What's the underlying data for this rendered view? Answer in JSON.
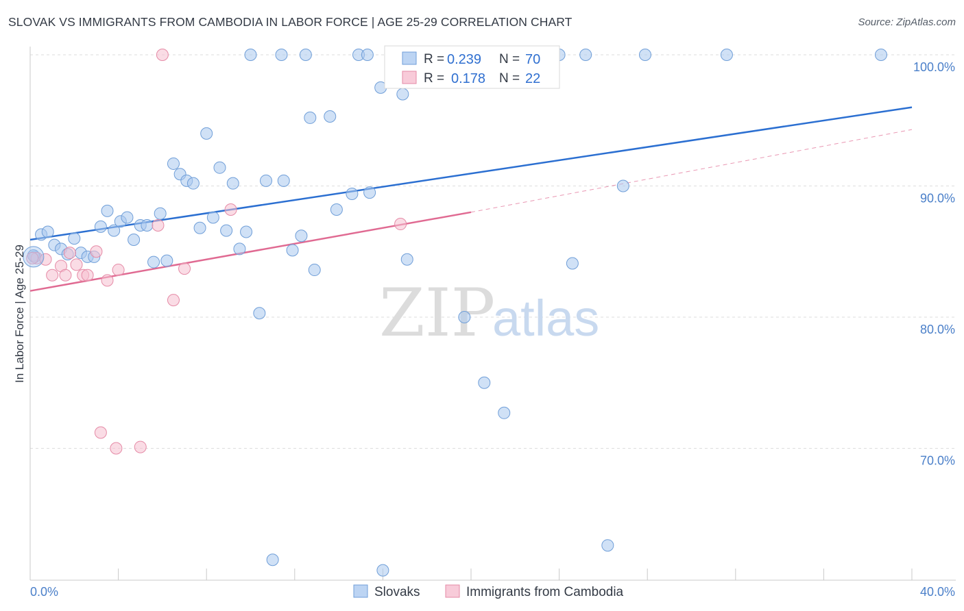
{
  "title": "SLOVAK VS IMMIGRANTS FROM CAMBODIA IN LABOR FORCE | AGE 25-29 CORRELATION CHART",
  "source": "Source: ZipAtlas.com",
  "watermark": {
    "part1": "ZIP",
    "part2": "atlas"
  },
  "colors": {
    "blue_fill": "#a9c8ef",
    "blue_stroke": "#6f9ed8",
    "blue_line": "#2b6fd1",
    "pink_fill": "#f6bfd0",
    "pink_stroke": "#e58aa6",
    "pink_line": "#e06a92",
    "grid": "#dddddd",
    "tick_text": "#4a7fc9"
  },
  "legend": {
    "r_label": "R =",
    "n_label": "N =",
    "rows": [
      {
        "r": "0.239",
        "n": "70"
      },
      {
        "r": "0.178",
        "n": "22"
      }
    ]
  },
  "chart_data": {
    "type": "scatter",
    "title": "SLOVAK VS IMMIGRANTS FROM CAMBODIA IN LABOR FORCE | AGE 25-29 CORRELATION CHART",
    "xlabel": "",
    "ylabel": "In Labor Force | Age 25-29",
    "xlim": [
      0,
      40
    ],
    "ylim": [
      61.5,
      101.5
    ],
    "x_tick_labels": [
      "0.0%",
      "40.0%"
    ],
    "y_ticks": [
      70,
      80,
      90,
      100
    ],
    "y_tick_labels": [
      "70.0%",
      "80.0%",
      "90.0%",
      "100.0%"
    ],
    "grid": true,
    "legend_position": "top-center",
    "series": [
      {
        "name": "Slovaks",
        "color": "#a9c8ef",
        "trend": {
          "x": [
            0,
            40
          ],
          "y": [
            85.9,
            96.0
          ]
        },
        "points": [
          [
            0.2,
            84.6
          ],
          [
            0.5,
            86.3
          ],
          [
            0.8,
            86.5
          ],
          [
            1.1,
            85.5
          ],
          [
            1.4,
            85.2
          ],
          [
            1.7,
            84.8
          ],
          [
            2.0,
            86.0
          ],
          [
            2.3,
            84.9
          ],
          [
            2.6,
            84.6
          ],
          [
            2.9,
            84.6
          ],
          [
            3.2,
            86.9
          ],
          [
            3.5,
            88.1
          ],
          [
            3.8,
            86.6
          ],
          [
            4.1,
            87.3
          ],
          [
            4.4,
            87.6
          ],
          [
            4.7,
            85.9
          ],
          [
            5.0,
            87.0
          ],
          [
            5.3,
            87.0
          ],
          [
            5.6,
            84.2
          ],
          [
            5.9,
            87.9
          ],
          [
            6.2,
            84.3
          ],
          [
            6.5,
            91.7
          ],
          [
            6.8,
            90.9
          ],
          [
            7.1,
            90.4
          ],
          [
            7.4,
            90.2
          ],
          [
            7.7,
            86.8
          ],
          [
            8.0,
            94.0
          ],
          [
            8.3,
            87.6
          ],
          [
            8.6,
            91.4
          ],
          [
            8.9,
            86.6
          ],
          [
            9.2,
            90.2
          ],
          [
            9.5,
            85.2
          ],
          [
            9.8,
            86.5
          ],
          [
            10.0,
            100.0
          ],
          [
            10.4,
            80.3
          ],
          [
            10.7,
            90.4
          ],
          [
            11.0,
            61.5
          ],
          [
            11.4,
            100.0
          ],
          [
            11.5,
            90.4
          ],
          [
            11.9,
            85.1
          ],
          [
            12.3,
            86.2
          ],
          [
            12.5,
            100.0
          ],
          [
            12.7,
            95.2
          ],
          [
            12.9,
            83.6
          ],
          [
            13.6,
            95.3
          ],
          [
            13.9,
            88.2
          ],
          [
            14.6,
            89.4
          ],
          [
            14.9,
            100.0
          ],
          [
            15.3,
            100.0
          ],
          [
            15.4,
            89.5
          ],
          [
            15.9,
            97.5
          ],
          [
            16.0,
            60.7
          ],
          [
            16.8,
            100.0
          ],
          [
            16.9,
            97.0
          ],
          [
            17.1,
            84.4
          ],
          [
            19.7,
            80.0
          ],
          [
            20.6,
            75.0
          ],
          [
            21.5,
            72.7
          ],
          [
            21.6,
            100.0
          ],
          [
            22.6,
            100.0
          ],
          [
            23.5,
            100.0
          ],
          [
            24.0,
            100.0
          ],
          [
            24.6,
            84.1
          ],
          [
            25.2,
            100.0
          ],
          [
            26.2,
            62.6
          ],
          [
            26.9,
            90.0
          ],
          [
            27.9,
            100.0
          ],
          [
            31.6,
            100.0
          ],
          [
            38.6,
            100.0
          ],
          [
            0.15,
            84.7
          ]
        ]
      },
      {
        "name": "Immigrants from Cambodia",
        "color": "#f6bfd0",
        "trend": {
          "x": [
            0,
            20
          ],
          "y": [
            82.0,
            88.0
          ]
        },
        "trend_extension": {
          "x": [
            20,
            40
          ],
          "y": [
            88.0,
            94.3
          ]
        },
        "points": [
          [
            0.3,
            84.5
          ],
          [
            0.7,
            84.4
          ],
          [
            1.0,
            83.2
          ],
          [
            1.4,
            83.9
          ],
          [
            1.6,
            83.2
          ],
          [
            1.8,
            84.9
          ],
          [
            2.1,
            84.0
          ],
          [
            2.4,
            83.2
          ],
          [
            2.6,
            83.2
          ],
          [
            3.0,
            85.0
          ],
          [
            3.2,
            71.2
          ],
          [
            3.5,
            82.8
          ],
          [
            3.9,
            70.0
          ],
          [
            4.0,
            83.6
          ],
          [
            5.0,
            70.1
          ],
          [
            5.8,
            87.0
          ],
          [
            6.0,
            100.0
          ],
          [
            6.5,
            81.3
          ],
          [
            7.0,
            83.7
          ],
          [
            9.1,
            88.2
          ],
          [
            16.8,
            87.1
          ],
          [
            0.1,
            84.5
          ]
        ]
      }
    ]
  },
  "bottom_legend": [
    {
      "label": "Slovaks"
    },
    {
      "label": "Immigrants from Cambodia"
    }
  ]
}
